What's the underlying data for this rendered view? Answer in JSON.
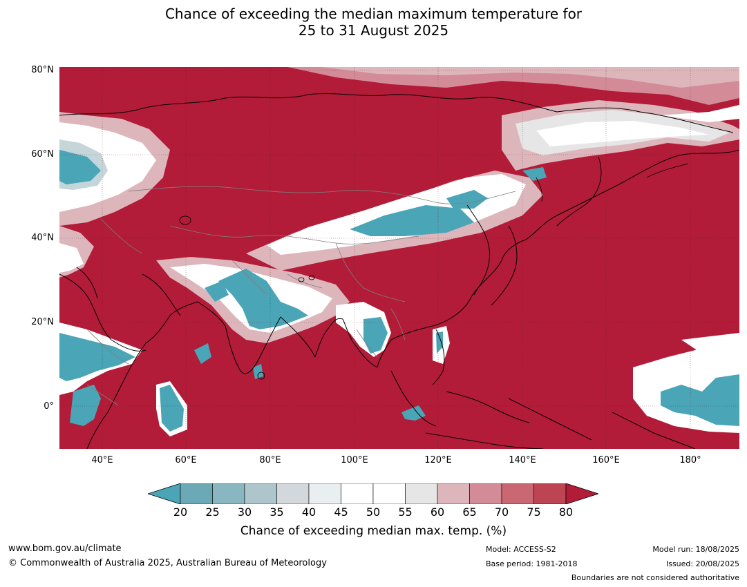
{
  "title": {
    "line1": "Chance of exceeding the median maximum temperature for",
    "line2": "25 to 31 August 2025"
  },
  "map": {
    "lat_labels": [
      "80°N",
      "60°N",
      "40°N",
      "20°N",
      "0°"
    ],
    "lon_labels": [
      "40°E",
      "60°E",
      "80°E",
      "100°E",
      "120°E",
      "140°E",
      "160°E",
      "180°"
    ],
    "colors": {
      "high": "#b21c38",
      "low": "#4aa5b7",
      "neutral": "#ffffff",
      "border_black": "#000000",
      "border_gray": "#808080"
    }
  },
  "colorbar": {
    "ticks": [
      "20",
      "25",
      "30",
      "35",
      "40",
      "45",
      "50",
      "55",
      "60",
      "65",
      "70",
      "75",
      "80"
    ],
    "colors": [
      "#4aa5b7",
      "#6ca9b6",
      "#89b6c1",
      "#adc5cb",
      "#d3d8dc",
      "#e9eef0",
      "#ffffff",
      "#ffffff",
      "#e6e6e6",
      "#ddb6bc",
      "#d38c97",
      "#c96872",
      "#bd4452",
      "#b21c38"
    ],
    "label": "Chance of exceeding median max. temp. (%)"
  },
  "footer": {
    "website": "www.bom.gov.au/climate",
    "copyright": "© Commonwealth of Australia 2025, Australian Bureau of Meteorology",
    "model": "Model: ACCESS-S2",
    "base_period": "Base period: 1981-2018",
    "model_run": "Model run: 18/08/2025",
    "issued": "Issued: 20/08/2025",
    "boundaries": "Boundaries are not considered authoritative"
  }
}
